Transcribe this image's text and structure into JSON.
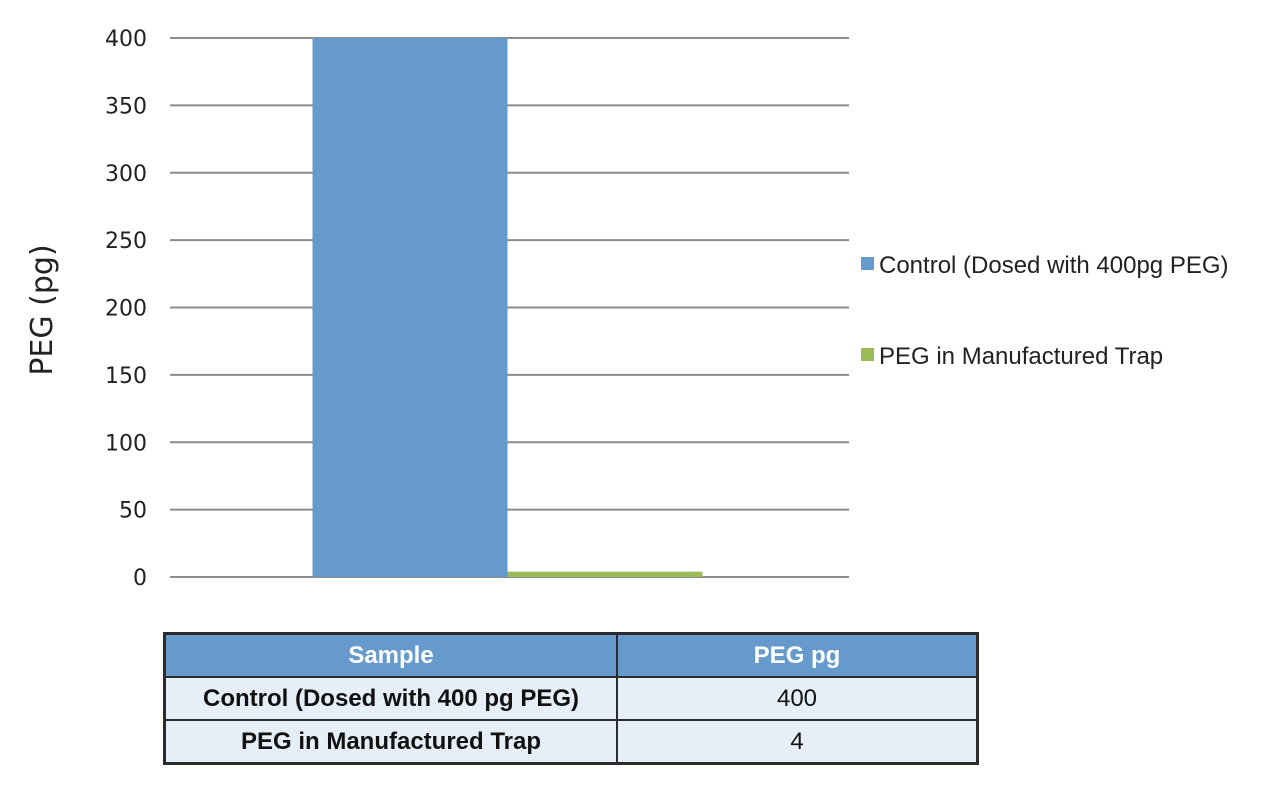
{
  "chart_data": {
    "type": "bar",
    "ylabel": "PEG (pg)",
    "ylim": [
      0,
      400
    ],
    "yticks": [
      0,
      50,
      100,
      150,
      200,
      250,
      300,
      350,
      400
    ],
    "grid": true,
    "legend_position": "right",
    "series": [
      {
        "name": "Control (Dosed with 400pg PEG)",
        "values": [
          400
        ],
        "color": "#6699cc"
      },
      {
        "name": "PEG in Manufactured Trap",
        "values": [
          4
        ],
        "color": "#9bbb59"
      }
    ]
  },
  "table": {
    "headers": [
      "Sample",
      "PEG pg"
    ],
    "rows": [
      [
        "Control (Dosed with 400 pg PEG)",
        "400"
      ],
      [
        "PEG in Manufactured Trap",
        "4"
      ]
    ]
  }
}
